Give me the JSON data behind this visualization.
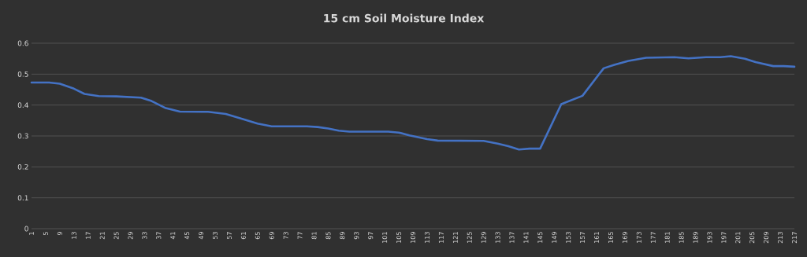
{
  "chart_data": {
    "type": "line",
    "title": "15 cm Soil Moisture Index",
    "series": [
      {
        "color": "#4472c4",
        "x": [
          1,
          6,
          9,
          13,
          16,
          20,
          25,
          32,
          35,
          39,
          43,
          51,
          56,
          61,
          65,
          69,
          79,
          82,
          85,
          88,
          91,
          102,
          105,
          108,
          113,
          116,
          129,
          133,
          136,
          139,
          142,
          145,
          151,
          157,
          163,
          166,
          170,
          175,
          183,
          187,
          192,
          196,
          199,
          203,
          206,
          211,
          214,
          217
        ],
        "values": [
          0.473,
          0.473,
          0.469,
          0.453,
          0.436,
          0.429,
          0.428,
          0.424,
          0.413,
          0.39,
          0.379,
          0.378,
          0.371,
          0.354,
          0.34,
          0.331,
          0.331,
          0.329,
          0.324,
          0.317,
          0.314,
          0.314,
          0.311,
          0.302,
          0.29,
          0.285,
          0.284,
          0.275,
          0.267,
          0.256,
          0.259,
          0.259,
          0.403,
          0.43,
          0.519,
          0.53,
          0.543,
          0.553,
          0.555,
          0.551,
          0.555,
          0.555,
          0.558,
          0.55,
          0.539,
          0.526,
          0.526,
          0.524
        ]
      }
    ],
    "xlim": [
      1,
      217
    ],
    "xticks": [
      1,
      5,
      9,
      13,
      17,
      21,
      25,
      29,
      33,
      37,
      41,
      45,
      49,
      53,
      57,
      61,
      65,
      69,
      73,
      77,
      81,
      85,
      89,
      93,
      97,
      101,
      105,
      109,
      113,
      117,
      121,
      125,
      129,
      133,
      137,
      141,
      145,
      149,
      153,
      157,
      161,
      165,
      169,
      173,
      177,
      181,
      185,
      189,
      193,
      197,
      201,
      205,
      209,
      213,
      217
    ],
    "ylim": [
      0,
      0.6
    ],
    "yticks": [
      0,
      0.1,
      0.2,
      0.3,
      0.4,
      0.5,
      0.6
    ],
    "grid": "y",
    "legend": false,
    "marker": "none",
    "line_style": "solid"
  }
}
